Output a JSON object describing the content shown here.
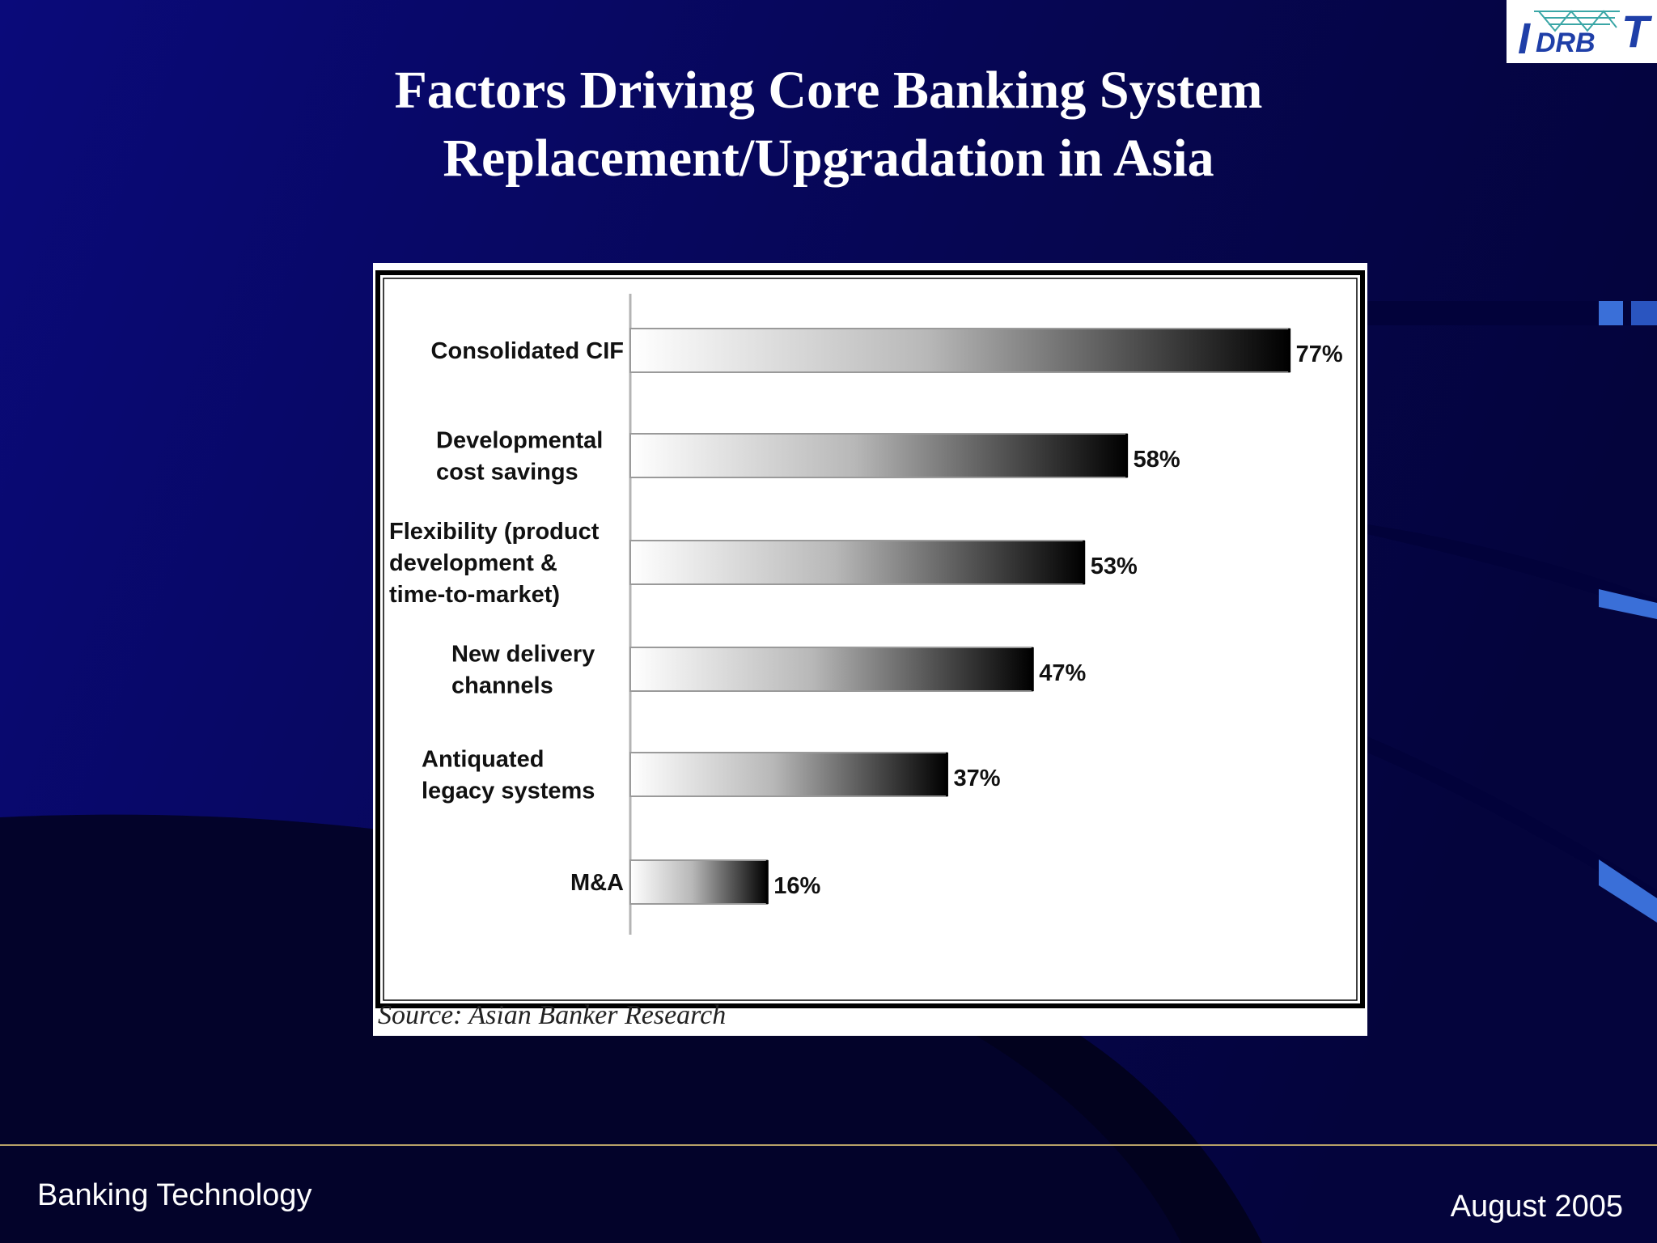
{
  "slide": {
    "title_lines": [
      "Factors Driving Core Banking System",
      "Replacement/Upgradation in Asia"
    ],
    "footer_left": "Banking Technology",
    "footer_right": "August 2005",
    "logo_text": "IDRBT"
  },
  "colors": {
    "background": "#08085e",
    "text": "#ffffff",
    "footer_rule": "#b8a268",
    "accent_stripe": "#3a6fd8",
    "logo_blue": "#1f3fa8",
    "logo_teal": "#3aa6a6"
  },
  "chart_data": {
    "type": "bar",
    "orientation": "horizontal",
    "categories": [
      [
        "Consolidated CIF"
      ],
      [
        "Developmental",
        "cost savings"
      ],
      [
        "Flexibility (product",
        "development &",
        "time-to-market)"
      ],
      [
        "New delivery",
        "channels"
      ],
      [
        "Antiquated",
        "legacy systems"
      ],
      [
        "M&A"
      ]
    ],
    "values": [
      77,
      58,
      53,
      47,
      37,
      16
    ],
    "value_labels": [
      "77%",
      "58%",
      "53%",
      "47%",
      "37%",
      "16%"
    ],
    "value_unit": "%",
    "xlim": [
      0,
      100
    ],
    "grid": false,
    "legend": "none",
    "source": "Source: Asian Banker Research"
  }
}
